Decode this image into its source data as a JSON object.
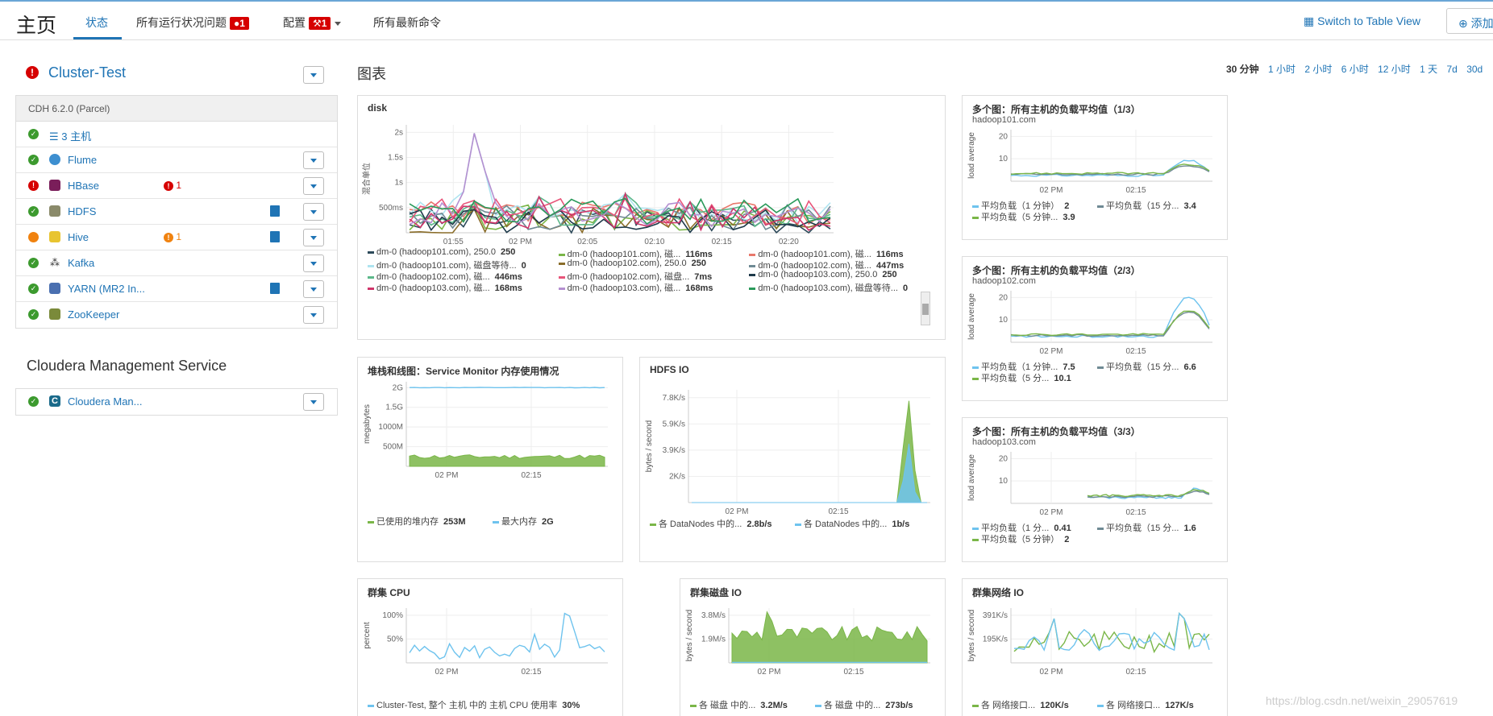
{
  "header": {
    "title": "主页",
    "tabs": [
      {
        "label": "状态"
      },
      {
        "label": "所有运行状况问题",
        "badge": "1"
      },
      {
        "label": "配置",
        "badge": "1"
      },
      {
        "label": "所有最新命令"
      }
    ],
    "switch_view": "Switch to Table View",
    "add_button": "添加"
  },
  "cluster": {
    "name": "Cluster-Test",
    "version": "CDH 6.2.0 (Parcel)",
    "services": [
      {
        "name": "3 主机",
        "status": "ok",
        "icon": "list-icon"
      },
      {
        "name": "Flume",
        "status": "ok",
        "icon": "flume-icon"
      },
      {
        "name": "HBase",
        "status": "error",
        "alert": "1",
        "icon": "hbase-icon"
      },
      {
        "name": "HDFS",
        "status": "ok",
        "icon": "hdfs-icon",
        "doc": true
      },
      {
        "name": "Hive",
        "status": "warning",
        "alert": "1",
        "icon": "hive-icon",
        "doc": true
      },
      {
        "name": "Kafka",
        "status": "ok",
        "icon": "kafka-icon"
      },
      {
        "name": "YARN (MR2 In...",
        "status": "ok",
        "icon": "yarn-icon",
        "doc": true
      },
      {
        "name": "ZooKeeper",
        "status": "ok",
        "icon": "zookeeper-icon"
      }
    ]
  },
  "cms": {
    "title": "Cloudera Management Service",
    "service": "Cloudera Man..."
  },
  "charts_title": "图表",
  "time_ranges": [
    "30 分钟",
    "1 小时",
    "2 小时",
    "6 小时",
    "12 小时",
    "1 天",
    "7d",
    "30d"
  ],
  "selected_range": "30 分钟",
  "colors": {
    "accent": "#1f74b5",
    "ok": "#3c9a2e",
    "error": "#d60000",
    "warning": "#f0820f",
    "green_series": "#7ab648",
    "blue_series": "#6ec3ee"
  },
  "chart_data": [
    {
      "type": "line",
      "title": "disk",
      "ylabel": "混合单位",
      "y_ticks": [
        "500ms",
        "1s",
        "1.5s",
        "2s"
      ],
      "x_ticks": [
        "01:55",
        "02 PM",
        "02:05",
        "02:10",
        "02:15",
        "02:20"
      ],
      "legend": [
        {
          "name": "dm-0 (hadoop101.com), 250.0",
          "value": "250",
          "color": "#2d4a5a"
        },
        {
          "name": "dm-0 (hadoop101.com), 磁...",
          "value": "116ms",
          "color": "#7ab648"
        },
        {
          "name": "dm-0 (hadoop101.com), 磁...",
          "value": "116ms",
          "color": "#e8786c"
        },
        {
          "name": "dm-0 (hadoop101.com), 磁盘等待...",
          "value": "0",
          "color": "#aee4f0"
        },
        {
          "name": "dm-0 (hadoop102.com), 250.0",
          "value": "250",
          "color": "#8a6d2a"
        },
        {
          "name": "dm-0 (hadoop102.com), 磁...",
          "value": "447ms",
          "color": "#6f8a94"
        },
        {
          "name": "dm-0 (hadoop102.com), 磁...",
          "value": "446ms",
          "color": "#5cb88a"
        },
        {
          "name": "dm-0 (hadoop102.com), 磁盘...",
          "value": "7ms",
          "color": "#e8557a"
        },
        {
          "name": "dm-0 (hadoop103.com), 250.0",
          "value": "250",
          "color": "#1e3a4a"
        },
        {
          "name": "dm-0 (hadoop103.com), 磁...",
          "value": "168ms",
          "color": "#d0356a"
        },
        {
          "name": "dm-0 (hadoop103.com), 磁...",
          "value": "168ms",
          "color": "#b48fd0"
        },
        {
          "name": "dm-0 (hadoop103.com), 磁盘等待...",
          "value": "0",
          "color": "#2a9a5a"
        }
      ]
    },
    {
      "type": "line",
      "title": "多个图：所有主机的负载平均值（1/3）",
      "subtitle": "hadoop101.com",
      "ylabel": "load average",
      "y_ticks": [
        "10",
        "20"
      ],
      "x_ticks": [
        "02 PM",
        "02:15"
      ],
      "legend": [
        {
          "name": "平均负载（1 分钟）",
          "value": "2",
          "color": "#6ec3ee"
        },
        {
          "name": "平均负载（15 分...",
          "value": "3.4",
          "color": "#6f8a94"
        },
        {
          "name": "平均负载（5 分钟...",
          "value": "3.9",
          "color": "#7ab648"
        }
      ]
    },
    {
      "type": "line",
      "title": "多个图：所有主机的负载平均值（2/3）",
      "subtitle": "hadoop102.com",
      "ylabel": "load average",
      "y_ticks": [
        "10",
        "20"
      ],
      "x_ticks": [
        "02 PM",
        "02:15"
      ],
      "legend": [
        {
          "name": "平均负载（1 分钟...",
          "value": "7.5",
          "color": "#6ec3ee"
        },
        {
          "name": "平均负载（15 分...",
          "value": "6.6",
          "color": "#6f8a94"
        },
        {
          "name": "平均负载（5 分...",
          "value": "10.1",
          "color": "#7ab648"
        }
      ]
    },
    {
      "type": "line",
      "title": "多个图：所有主机的负载平均值（3/3）",
      "subtitle": "hadoop103.com",
      "ylabel": "load average",
      "y_ticks": [
        "10",
        "20"
      ],
      "x_ticks": [
        "02 PM",
        "02:15"
      ],
      "legend": [
        {
          "name": "平均负载（1 分...",
          "value": "0.41",
          "color": "#6ec3ee"
        },
        {
          "name": "平均负载（15 分...",
          "value": "1.6",
          "color": "#6f8a94"
        },
        {
          "name": "平均负载（5 分钟）",
          "value": "2",
          "color": "#7ab648"
        }
      ]
    },
    {
      "type": "area",
      "title": "堆栈和线图：Service Monitor 内存使用情况",
      "ylabel": "megabytes",
      "y_ticks": [
        "500M",
        "1000M",
        "1.5G",
        "2G"
      ],
      "x_ticks": [
        "02 PM",
        "02:15"
      ],
      "legend": [
        {
          "name": "已使用的堆内存",
          "value": "253M",
          "color": "#7ab648"
        },
        {
          "name": "最大内存",
          "value": "2G",
          "color": "#6ec3ee"
        }
      ]
    },
    {
      "type": "area",
      "title": "HDFS IO",
      "ylabel": "bytes / second",
      "y_ticks": [
        "2K/s",
        "3.9K/s",
        "5.9K/s",
        "7.8K/s"
      ],
      "x_ticks": [
        "02 PM",
        "02:15"
      ],
      "legend": [
        {
          "name": "各 DataNodes 中的...",
          "value": "2.8b/s",
          "color": "#7ab648"
        },
        {
          "name": "各 DataNodes 中的...",
          "value": "1b/s",
          "color": "#6ec3ee"
        }
      ]
    },
    {
      "type": "line",
      "title": "群集 CPU",
      "ylabel": "percent",
      "y_ticks": [
        "50%",
        "100%"
      ],
      "x_ticks": [
        "02 PM",
        "02:15"
      ],
      "legend": [
        {
          "name": "Cluster-Test, 整个 主机 中的 主机 CPU 使用率",
          "value": "30%",
          "color": "#6ec3ee"
        }
      ]
    },
    {
      "type": "area",
      "title": "群集磁盘 IO",
      "ylabel": "bytes / second",
      "y_ticks": [
        "1.9M/s",
        "3.8M/s"
      ],
      "x_ticks": [
        "02 PM",
        "02:15"
      ],
      "legend": [
        {
          "name": "各 磁盘 中的...",
          "value": "3.2M/s",
          "color": "#7ab648"
        },
        {
          "name": "各 磁盘 中的...",
          "value": "273b/s",
          "color": "#6ec3ee"
        }
      ]
    },
    {
      "type": "line",
      "title": "群集网络 IO",
      "ylabel": "bytes / second",
      "y_ticks": [
        "195K/s",
        "391K/s"
      ],
      "x_ticks": [
        "02 PM",
        "02:15"
      ],
      "legend": [
        {
          "name": "各 网络接口...",
          "value": "120K/s",
          "color": "#7ab648"
        },
        {
          "name": "各 网络接口...",
          "value": "127K/s",
          "color": "#6ec3ee"
        }
      ]
    }
  ],
  "watermark": "https://blog.csdn.net/weixin_29057619"
}
